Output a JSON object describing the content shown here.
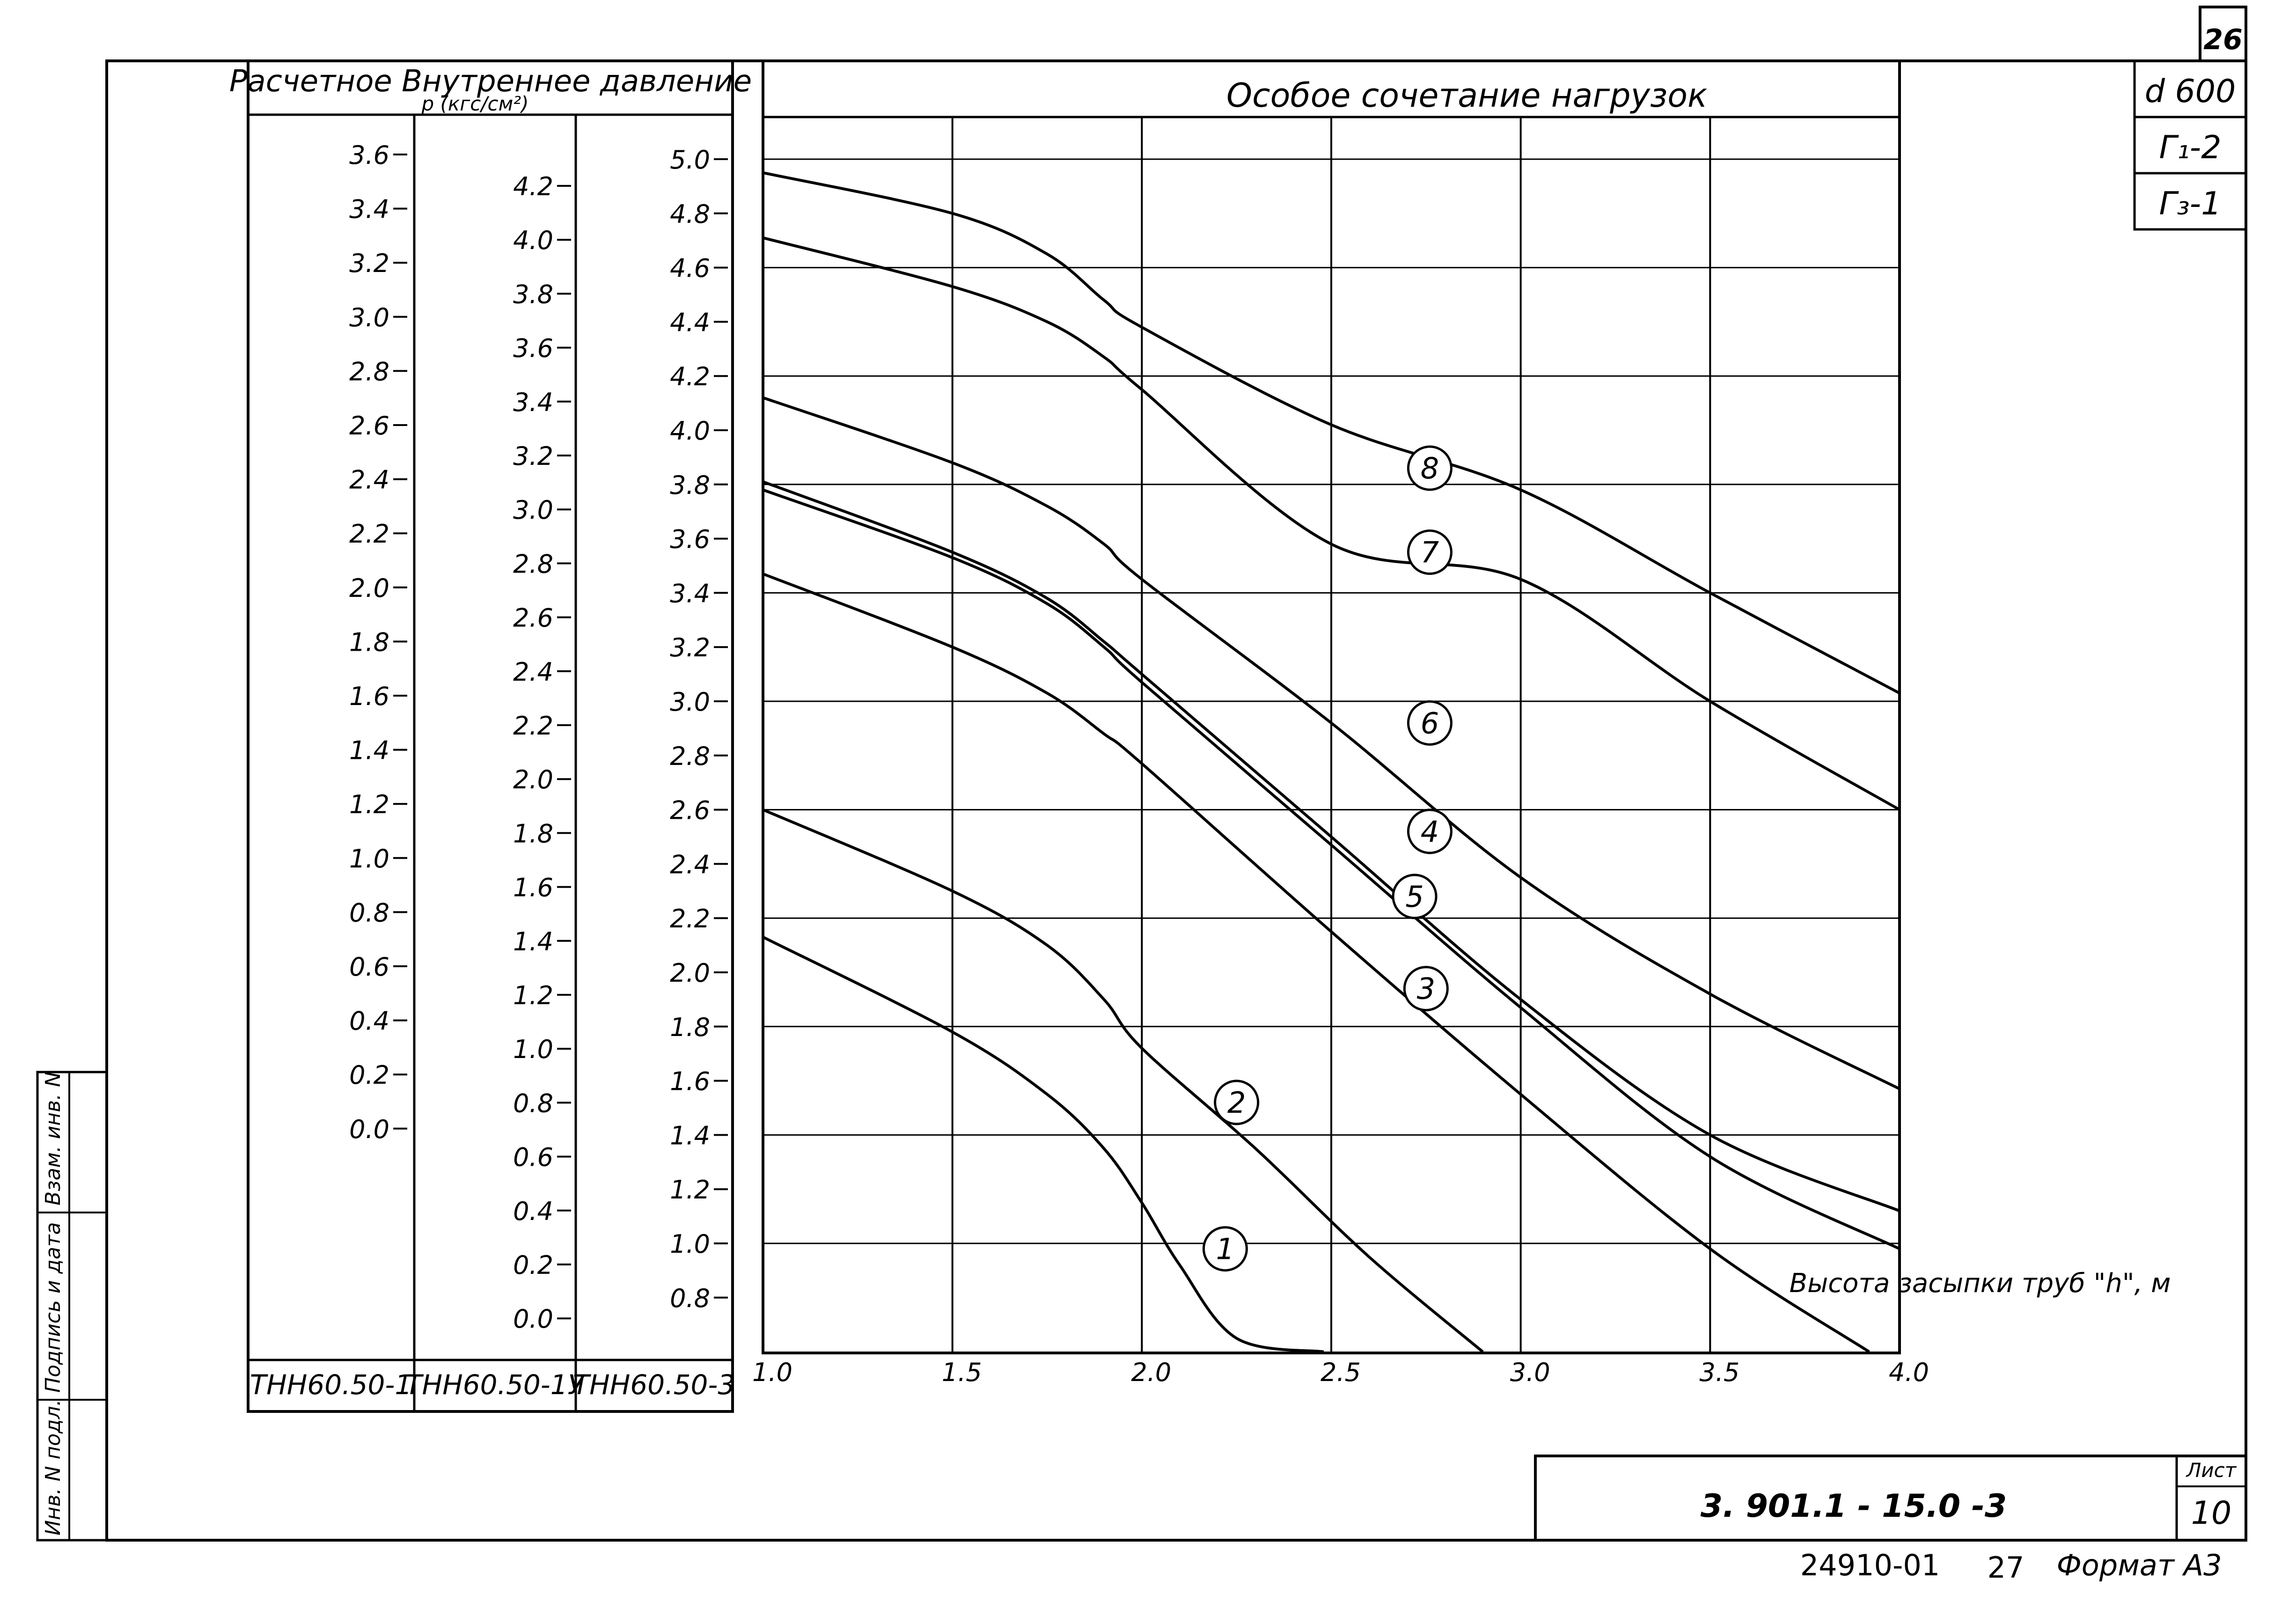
{
  "sheet": {
    "corner_page": "26",
    "diameter": "d 600",
    "code_g1": "Г₁-2",
    "code_g3": "Г₃-1",
    "doc_number": "3. 901.1 - 15.0 -3",
    "sheet_label": "Лист",
    "sheet_number": "10",
    "bottom_code": "24910-01",
    "bottom_num": "27",
    "format": "Формат А3",
    "side_labels": [
      "Инв. N подл.",
      "Подпись и дата",
      "Взам. инв. N"
    ]
  },
  "scales": {
    "header_line1": "Расчетное  Внутреннее  давление",
    "header_line2": "p (кгс/см²)",
    "columns": [
      {
        "label": "ТНН60.50-1",
        "ticks": [
          "3.6",
          "3.4",
          "3.2",
          "3.0",
          "2.8",
          "2.6",
          "2.4",
          "2.2",
          "2.0",
          "1.8",
          "1.6",
          "1.4",
          "1.2",
          "1.0",
          "0.8",
          "0.6",
          "0.4",
          "0.2",
          "0.0"
        ],
        "values": [
          3.6,
          3.4,
          3.2,
          3.0,
          2.8,
          2.6,
          2.4,
          2.2,
          2.0,
          1.8,
          1.6,
          1.4,
          1.2,
          1.0,
          0.8,
          0.6,
          0.4,
          0.2,
          0.0
        ]
      },
      {
        "label": "ТНН60.50-1У",
        "ticks": [
          "4.2",
          "4.0",
          "3.8",
          "3.6",
          "3.4",
          "3.2",
          "3.0",
          "2.8",
          "2.6",
          "2.4",
          "2.2",
          "2.0",
          "1.8",
          "1.6",
          "1.4",
          "1.2",
          "1.0",
          "0.8",
          "0.6",
          "0.4",
          "0.2",
          "0.0"
        ],
        "values": [
          4.2,
          4.0,
          3.8,
          3.6,
          3.4,
          3.2,
          3.0,
          2.8,
          2.6,
          2.4,
          2.2,
          2.0,
          1.8,
          1.6,
          1.4,
          1.2,
          1.0,
          0.8,
          0.6,
          0.4,
          0.2,
          0.0
        ]
      },
      {
        "label": "ТНН60.50-3",
        "ticks": [
          "5.0",
          "4.8",
          "4.6",
          "4.4",
          "4.2",
          "4.0",
          "3.8",
          "3.6",
          "3.4",
          "3.2",
          "3.0",
          "2.8",
          "2.6",
          "2.4",
          "2.2",
          "2.0",
          "1.8",
          "1.6",
          "1.4",
          "1.2",
          "1.0",
          "0.8"
        ],
        "values": [
          5.0,
          4.8,
          4.6,
          4.4,
          4.2,
          4.0,
          3.8,
          3.6,
          3.4,
          3.2,
          3.0,
          2.8,
          2.6,
          2.4,
          2.2,
          2.0,
          1.8,
          1.6,
          1.4,
          1.2,
          1.0,
          0.8
        ]
      }
    ]
  },
  "chart_data": {
    "type": "line",
    "title": "Особое   сочетание   нагрузок",
    "xlabel": "Высота засыпки труб \"h\", м",
    "ylabel": "",
    "x_ticks": [
      "1.0",
      "1.5",
      "2.0",
      "2.5",
      "3.0",
      "3.5",
      "4.0"
    ],
    "xlim": [
      1.0,
      4.0
    ],
    "ylim": [
      0.6,
      5.15
    ],
    "grid": true,
    "series": [
      {
        "name": "1",
        "points": [
          [
            1.0,
            2.13
          ],
          [
            1.5,
            1.78
          ],
          [
            1.75,
            1.55
          ],
          [
            1.9,
            1.35
          ],
          [
            2.0,
            1.15
          ],
          [
            2.1,
            0.92
          ],
          [
            2.25,
            0.65
          ],
          [
            2.48,
            0.6
          ]
        ]
      },
      {
        "name": "2",
        "points": [
          [
            1.0,
            2.6
          ],
          [
            1.5,
            2.3
          ],
          [
            1.75,
            2.1
          ],
          [
            1.9,
            1.9
          ],
          [
            2.0,
            1.72
          ],
          [
            2.3,
            1.35
          ],
          [
            2.6,
            0.95
          ],
          [
            2.9,
            0.6
          ]
        ]
      },
      {
        "name": "3",
        "points": [
          [
            1.0,
            3.47
          ],
          [
            1.5,
            3.2
          ],
          [
            1.75,
            3.03
          ],
          [
            1.9,
            2.88
          ],
          [
            2.0,
            2.77
          ],
          [
            2.5,
            2.15
          ],
          [
            3.0,
            1.55
          ],
          [
            3.5,
            0.98
          ],
          [
            3.92,
            0.6
          ]
        ]
      },
      {
        "name": "4",
        "points": [
          [
            1.0,
            3.81
          ],
          [
            1.5,
            3.55
          ],
          [
            1.75,
            3.38
          ],
          [
            1.9,
            3.22
          ],
          [
            2.0,
            3.1
          ],
          [
            2.5,
            2.5
          ],
          [
            3.0,
            1.9
          ],
          [
            3.5,
            1.4
          ],
          [
            4.0,
            1.12
          ]
        ]
      },
      {
        "name": "5",
        "points": [
          [
            1.0,
            3.78
          ],
          [
            1.5,
            3.53
          ],
          [
            1.75,
            3.36
          ],
          [
            1.9,
            3.2
          ],
          [
            2.0,
            3.07
          ],
          [
            2.5,
            2.47
          ],
          [
            3.0,
            1.87
          ],
          [
            3.5,
            1.32
          ],
          [
            4.0,
            0.98
          ]
        ]
      },
      {
        "name": "6",
        "points": [
          [
            1.0,
            4.12
          ],
          [
            1.5,
            3.88
          ],
          [
            1.75,
            3.72
          ],
          [
            1.9,
            3.58
          ],
          [
            2.0,
            3.45
          ],
          [
            2.5,
            2.92
          ],
          [
            3.0,
            2.35
          ],
          [
            3.5,
            1.92
          ],
          [
            4.0,
            1.57
          ]
        ]
      },
      {
        "name": "7",
        "points": [
          [
            1.0,
            4.71
          ],
          [
            1.5,
            4.53
          ],
          [
            1.75,
            4.4
          ],
          [
            1.9,
            4.27
          ],
          [
            2.0,
            4.15
          ],
          [
            2.5,
            3.58
          ],
          [
            3.0,
            3.45
          ],
          [
            3.5,
            3.0
          ],
          [
            4.0,
            2.6
          ]
        ]
      },
      {
        "name": "8",
        "points": [
          [
            1.0,
            4.95
          ],
          [
            1.5,
            4.8
          ],
          [
            1.75,
            4.65
          ],
          [
            1.9,
            4.48
          ],
          [
            2.0,
            4.38
          ],
          [
            2.5,
            4.02
          ],
          [
            3.0,
            3.78
          ],
          [
            3.5,
            3.4
          ],
          [
            4.0,
            3.03
          ]
        ]
      }
    ],
    "markers": [
      {
        "label": "1",
        "x": 2.22,
        "y": 0.98
      },
      {
        "label": "2",
        "x": 2.25,
        "y": 1.52
      },
      {
        "label": "3",
        "x": 2.75,
        "y": 1.94
      },
      {
        "label": "4",
        "x": 2.76,
        "y": 2.52
      },
      {
        "label": "5",
        "x": 2.72,
        "y": 2.28
      },
      {
        "label": "6",
        "x": 2.76,
        "y": 2.92
      },
      {
        "label": "7",
        "x": 2.76,
        "y": 3.55
      },
      {
        "label": "8",
        "x": 2.76,
        "y": 3.86
      }
    ]
  }
}
